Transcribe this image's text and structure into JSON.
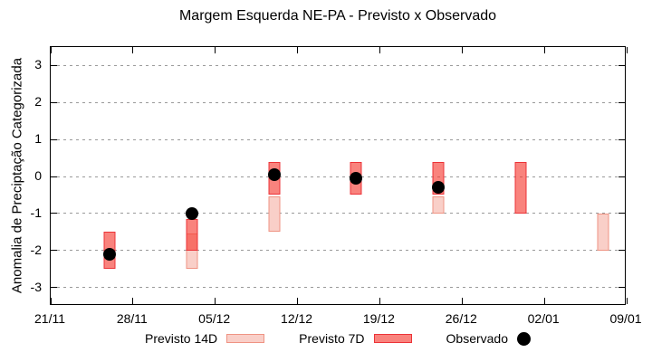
{
  "chart_data": {
    "type": "bar",
    "subtype": "range-bars-with-scatter-overlay",
    "title": "Margem Esquerda NE-PA - Previsto x Observado",
    "ylabel": "Anomalia de Preciptação Categorizada",
    "xlabel": "",
    "ylim": [
      -3.5,
      3.5
    ],
    "yticks": [
      3,
      2,
      1,
      0,
      -1,
      -2,
      -3
    ],
    "grid": "horizontal-dotted",
    "x_axis": {
      "tick_labels": [
        "21/11",
        "28/11",
        "05/12",
        "12/12",
        "19/12",
        "26/12",
        "02/01",
        "09/01"
      ],
      "tick_days": [
        0,
        7,
        14,
        21,
        28,
        35,
        42,
        49
      ],
      "range_days": [
        0,
        49
      ]
    },
    "colors": {
      "previsto_14d_fill": "#f9cfc8",
      "previsto_14d_border": "#ef9383",
      "previsto_7d_fill": "rgba(245,55,45,0.62)",
      "previsto_7d_border": "#ec3338",
      "observado": "#000000",
      "grid": "#9a9a9a"
    },
    "groups": [
      {
        "date": "26/11",
        "day": 5,
        "previsto_14d": null,
        "previsto_7d": [
          -1.5,
          -2.5
        ],
        "observado": -2.1
      },
      {
        "date": "03/12",
        "day": 12,
        "previsto_14d": [
          -1.55,
          -2.5
        ],
        "previsto_7d": [
          -1.15,
          -2.0
        ],
        "observado": -1.0
      },
      {
        "date": "10/12",
        "day": 19,
        "previsto_14d": [
          -0.55,
          -1.5
        ],
        "previsto_7d": [
          0.4,
          -0.5
        ],
        "observado": 0.05
      },
      {
        "date": "17/12",
        "day": 26,
        "previsto_14d": null,
        "previsto_7d": [
          0.4,
          -0.5
        ],
        "observado": -0.05
      },
      {
        "date": "24/12",
        "day": 33,
        "previsto_14d": [
          -0.55,
          -1.0
        ],
        "previsto_7d": [
          0.4,
          -0.5
        ],
        "observado": -0.3
      },
      {
        "date": "31/12",
        "day": 40,
        "previsto_14d": null,
        "previsto_7d": [
          0.4,
          -1.0
        ],
        "observado": null
      },
      {
        "date": "07/01",
        "day": 47,
        "previsto_14d": [
          -1.0,
          -2.0
        ],
        "previsto_7d": null,
        "observado": null
      }
    ],
    "legend": [
      {
        "label": "Previsto 14D",
        "swatch": "box-14d"
      },
      {
        "label": "Previsto 7D",
        "swatch": "box-7d"
      },
      {
        "label": "Observado",
        "swatch": "dot"
      }
    ],
    "legend_position": "bottom-center"
  }
}
